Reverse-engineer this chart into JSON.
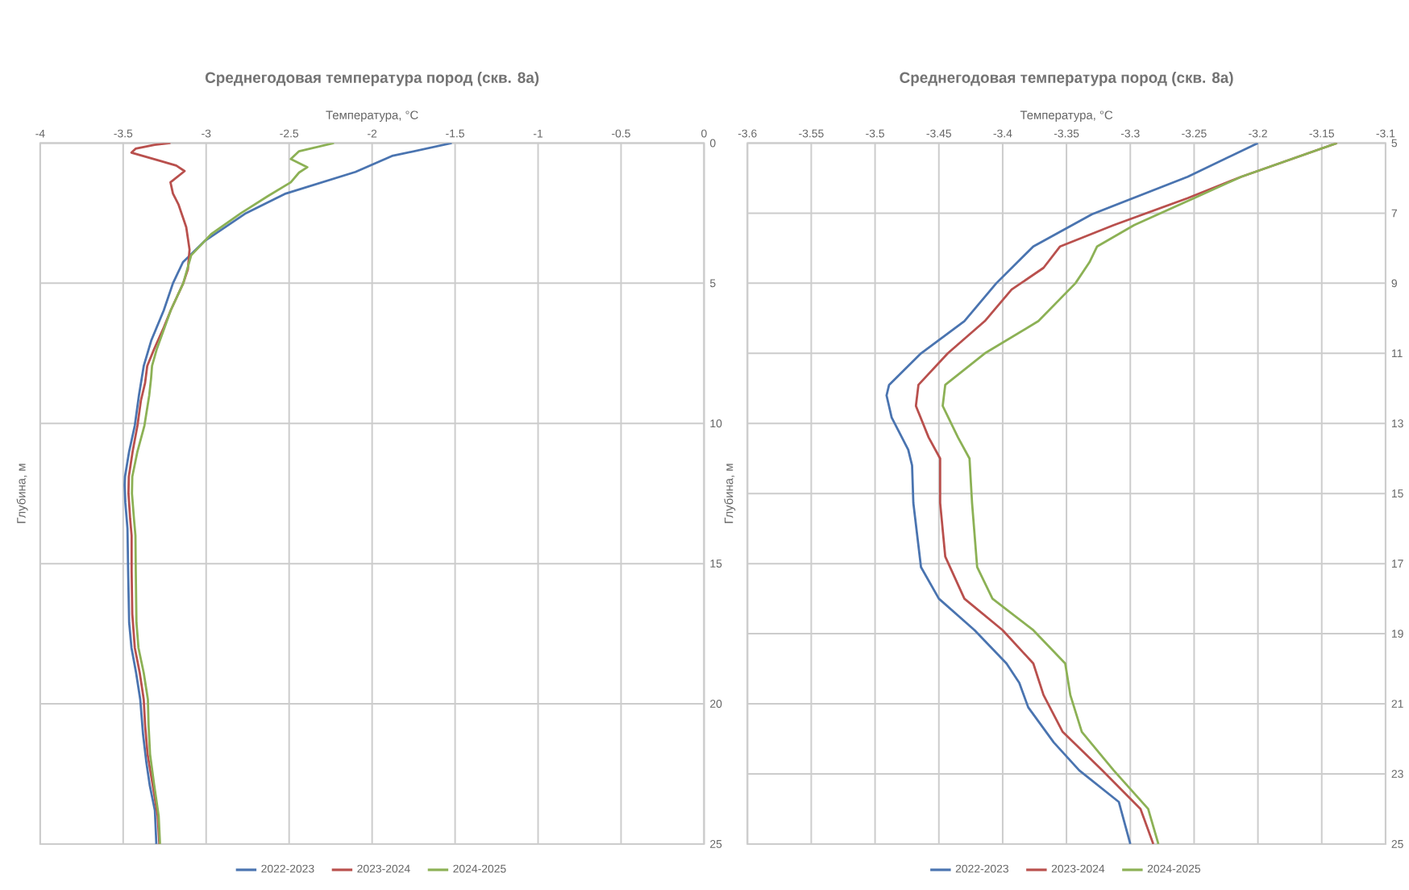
{
  "chart_data": [
    {
      "type": "line",
      "title": "Среднегодовая температура пород (скв. 8а)",
      "xlabel": "Температура, °C",
      "ylabel": "Глубина, м",
      "xlim": [
        -4,
        0
      ],
      "xticks": [
        -4,
        -3.5,
        -3,
        -2.5,
        -2,
        -1.5,
        -1,
        -0.5,
        0
      ],
      "ylim": [
        25,
        0
      ],
      "yticks": [
        0,
        5,
        10,
        15,
        20,
        25
      ],
      "grid": true,
      "legend": "bottom",
      "series": [
        {
          "name": "2022-2023",
          "color": "#4a74b0",
          "x": [
            -1.52,
            -1.88,
            -2.1,
            -2.52,
            -2.76,
            -3.01,
            -3.14,
            -3.2,
            -3.255,
            -3.33,
            -3.376,
            -3.405,
            -3.43,
            -3.464,
            -3.489,
            -3.491,
            -3.487,
            -3.474,
            -3.47,
            -3.464,
            -3.45,
            -3.422,
            -3.397,
            -3.38,
            -3.36,
            -3.34,
            -3.309,
            -3.3
          ],
          "values": [
            0,
            0.46,
            1.03,
            1.8,
            2.5,
            3.5,
            4.25,
            5,
            5.96,
            7.03,
            7.95,
            9,
            10.08,
            11,
            11.9,
            12.2,
            12.83,
            13.75,
            15.27,
            17.1,
            18,
            18.9,
            19.85,
            21.1,
            22.1,
            22.9,
            23.8,
            25
          ]
        },
        {
          "name": "2023-2024",
          "color": "#b9504d",
          "x": [
            -3.215,
            -3.31,
            -3.425,
            -3.45,
            -3.28,
            -3.18,
            -3.13,
            -3.215,
            -3.2,
            -3.166,
            -3.12,
            -3.1,
            -3.11,
            -3.138,
            -3.213,
            -3.255,
            -3.313,
            -3.355,
            -3.368,
            -3.393,
            -3.414,
            -3.443,
            -3.466,
            -3.468,
            -3.458,
            -3.449,
            -3.449,
            -3.445,
            -3.43,
            -3.4,
            -3.376,
            -3.368,
            -3.353,
            -3.322,
            -3.292,
            -3.282
          ],
          "values": [
            0,
            0.06,
            0.2,
            0.34,
            0.63,
            0.8,
            1.0,
            1.4,
            1.8,
            2.2,
            3.0,
            3.8,
            4.5,
            5,
            5.96,
            6.57,
            7.34,
            7.95,
            8.56,
            9.18,
            10.08,
            11,
            11.9,
            12.5,
            13.4,
            14,
            15.27,
            16.8,
            18,
            18.9,
            19.85,
            20.75,
            21.8,
            22.9,
            24,
            25
          ]
        },
        {
          "name": "2024-2025",
          "color": "#8cb155",
          "x": [
            -2.23,
            -2.44,
            -2.49,
            -2.39,
            -2.44,
            -2.49,
            -2.63,
            -2.79,
            -2.97,
            -3.09,
            -3.138,
            -3.213,
            -3.25,
            -3.297,
            -3.326,
            -3.332,
            -3.343,
            -3.372,
            -3.414,
            -3.445,
            -3.447,
            -3.435,
            -3.426,
            -3.424,
            -3.42,
            -3.408,
            -3.376,
            -3.351,
            -3.347,
            -3.338,
            -3.313,
            -3.286,
            -3.278
          ],
          "values": [
            0,
            0.29,
            0.57,
            0.86,
            1.05,
            1.4,
            1.9,
            2.5,
            3.25,
            4.0,
            5,
            5.96,
            6.57,
            7.34,
            7.95,
            8.4,
            9,
            10.08,
            11,
            11.9,
            12.5,
            13.4,
            14,
            15.27,
            17.1,
            18,
            18.9,
            19.85,
            20.75,
            21.8,
            22.9,
            24,
            25
          ]
        }
      ]
    },
    {
      "type": "line",
      "title": "Среднегодовая температура пород (скв. 8а)",
      "xlabel": "Температура, °C",
      "ylabel": "Глубина, м",
      "xlim": [
        -3.6,
        -3.1
      ],
      "xticks": [
        -3.6,
        -3.55,
        -3.5,
        -3.45,
        -3.4,
        -3.35,
        -3.3,
        -3.25,
        -3.2,
        -3.15,
        -3.1
      ],
      "ylim": [
        25,
        5
      ],
      "yticks": [
        5,
        7,
        9,
        11,
        13,
        15,
        17,
        19,
        21,
        23,
        25
      ],
      "grid": true,
      "legend": "bottom",
      "series": [
        {
          "name": "2022-2023",
          "color": "#4a74b0",
          "x": [
            -3.2,
            -3.255,
            -3.33,
            -3.376,
            -3.405,
            -3.43,
            -3.464,
            -3.489,
            -3.491,
            -3.487,
            -3.474,
            -3.471,
            -3.47,
            -3.464,
            -3.45,
            -3.422,
            -3.397,
            -3.387,
            -3.38,
            -3.36,
            -3.34,
            -3.309,
            -3.3
          ],
          "values": [
            5,
            5.96,
            7.03,
            7.95,
            9,
            10.08,
            11,
            11.9,
            12.2,
            12.83,
            13.75,
            14.2,
            15.27,
            17.1,
            18,
            18.9,
            19.85,
            20.4,
            21.1,
            22.1,
            22.9,
            23.8,
            25
          ]
        },
        {
          "name": "2023-2024",
          "color": "#b9504d",
          "x": [
            -3.138,
            -3.213,
            -3.255,
            -3.313,
            -3.355,
            -3.368,
            -3.393,
            -3.414,
            -3.443,
            -3.466,
            -3.468,
            -3.458,
            -3.449,
            -3.449,
            -3.445,
            -3.43,
            -3.4,
            -3.376,
            -3.368,
            -3.353,
            -3.322,
            -3.292,
            -3.282
          ],
          "values": [
            5,
            5.96,
            6.57,
            7.34,
            7.95,
            8.56,
            9.18,
            10.08,
            11,
            11.9,
            12.5,
            13.4,
            14,
            15.27,
            16.8,
            18,
            18.9,
            19.85,
            20.75,
            21.8,
            22.9,
            24,
            25
          ]
        },
        {
          "name": "2024-2025",
          "color": "#8cb155",
          "x": [
            -3.138,
            -3.213,
            -3.25,
            -3.297,
            -3.326,
            -3.332,
            -3.343,
            -3.372,
            -3.414,
            -3.445,
            -3.447,
            -3.435,
            -3.426,
            -3.424,
            -3.42,
            -3.408,
            -3.376,
            -3.351,
            -3.347,
            -3.338,
            -3.313,
            -3.286,
            -3.278
          ],
          "values": [
            5,
            5.96,
            6.57,
            7.34,
            7.95,
            8.4,
            9,
            10.08,
            11,
            11.9,
            12.5,
            13.4,
            14,
            15.27,
            17.1,
            18,
            18.9,
            19.85,
            20.75,
            21.8,
            22.9,
            24,
            25
          ]
        }
      ]
    }
  ]
}
